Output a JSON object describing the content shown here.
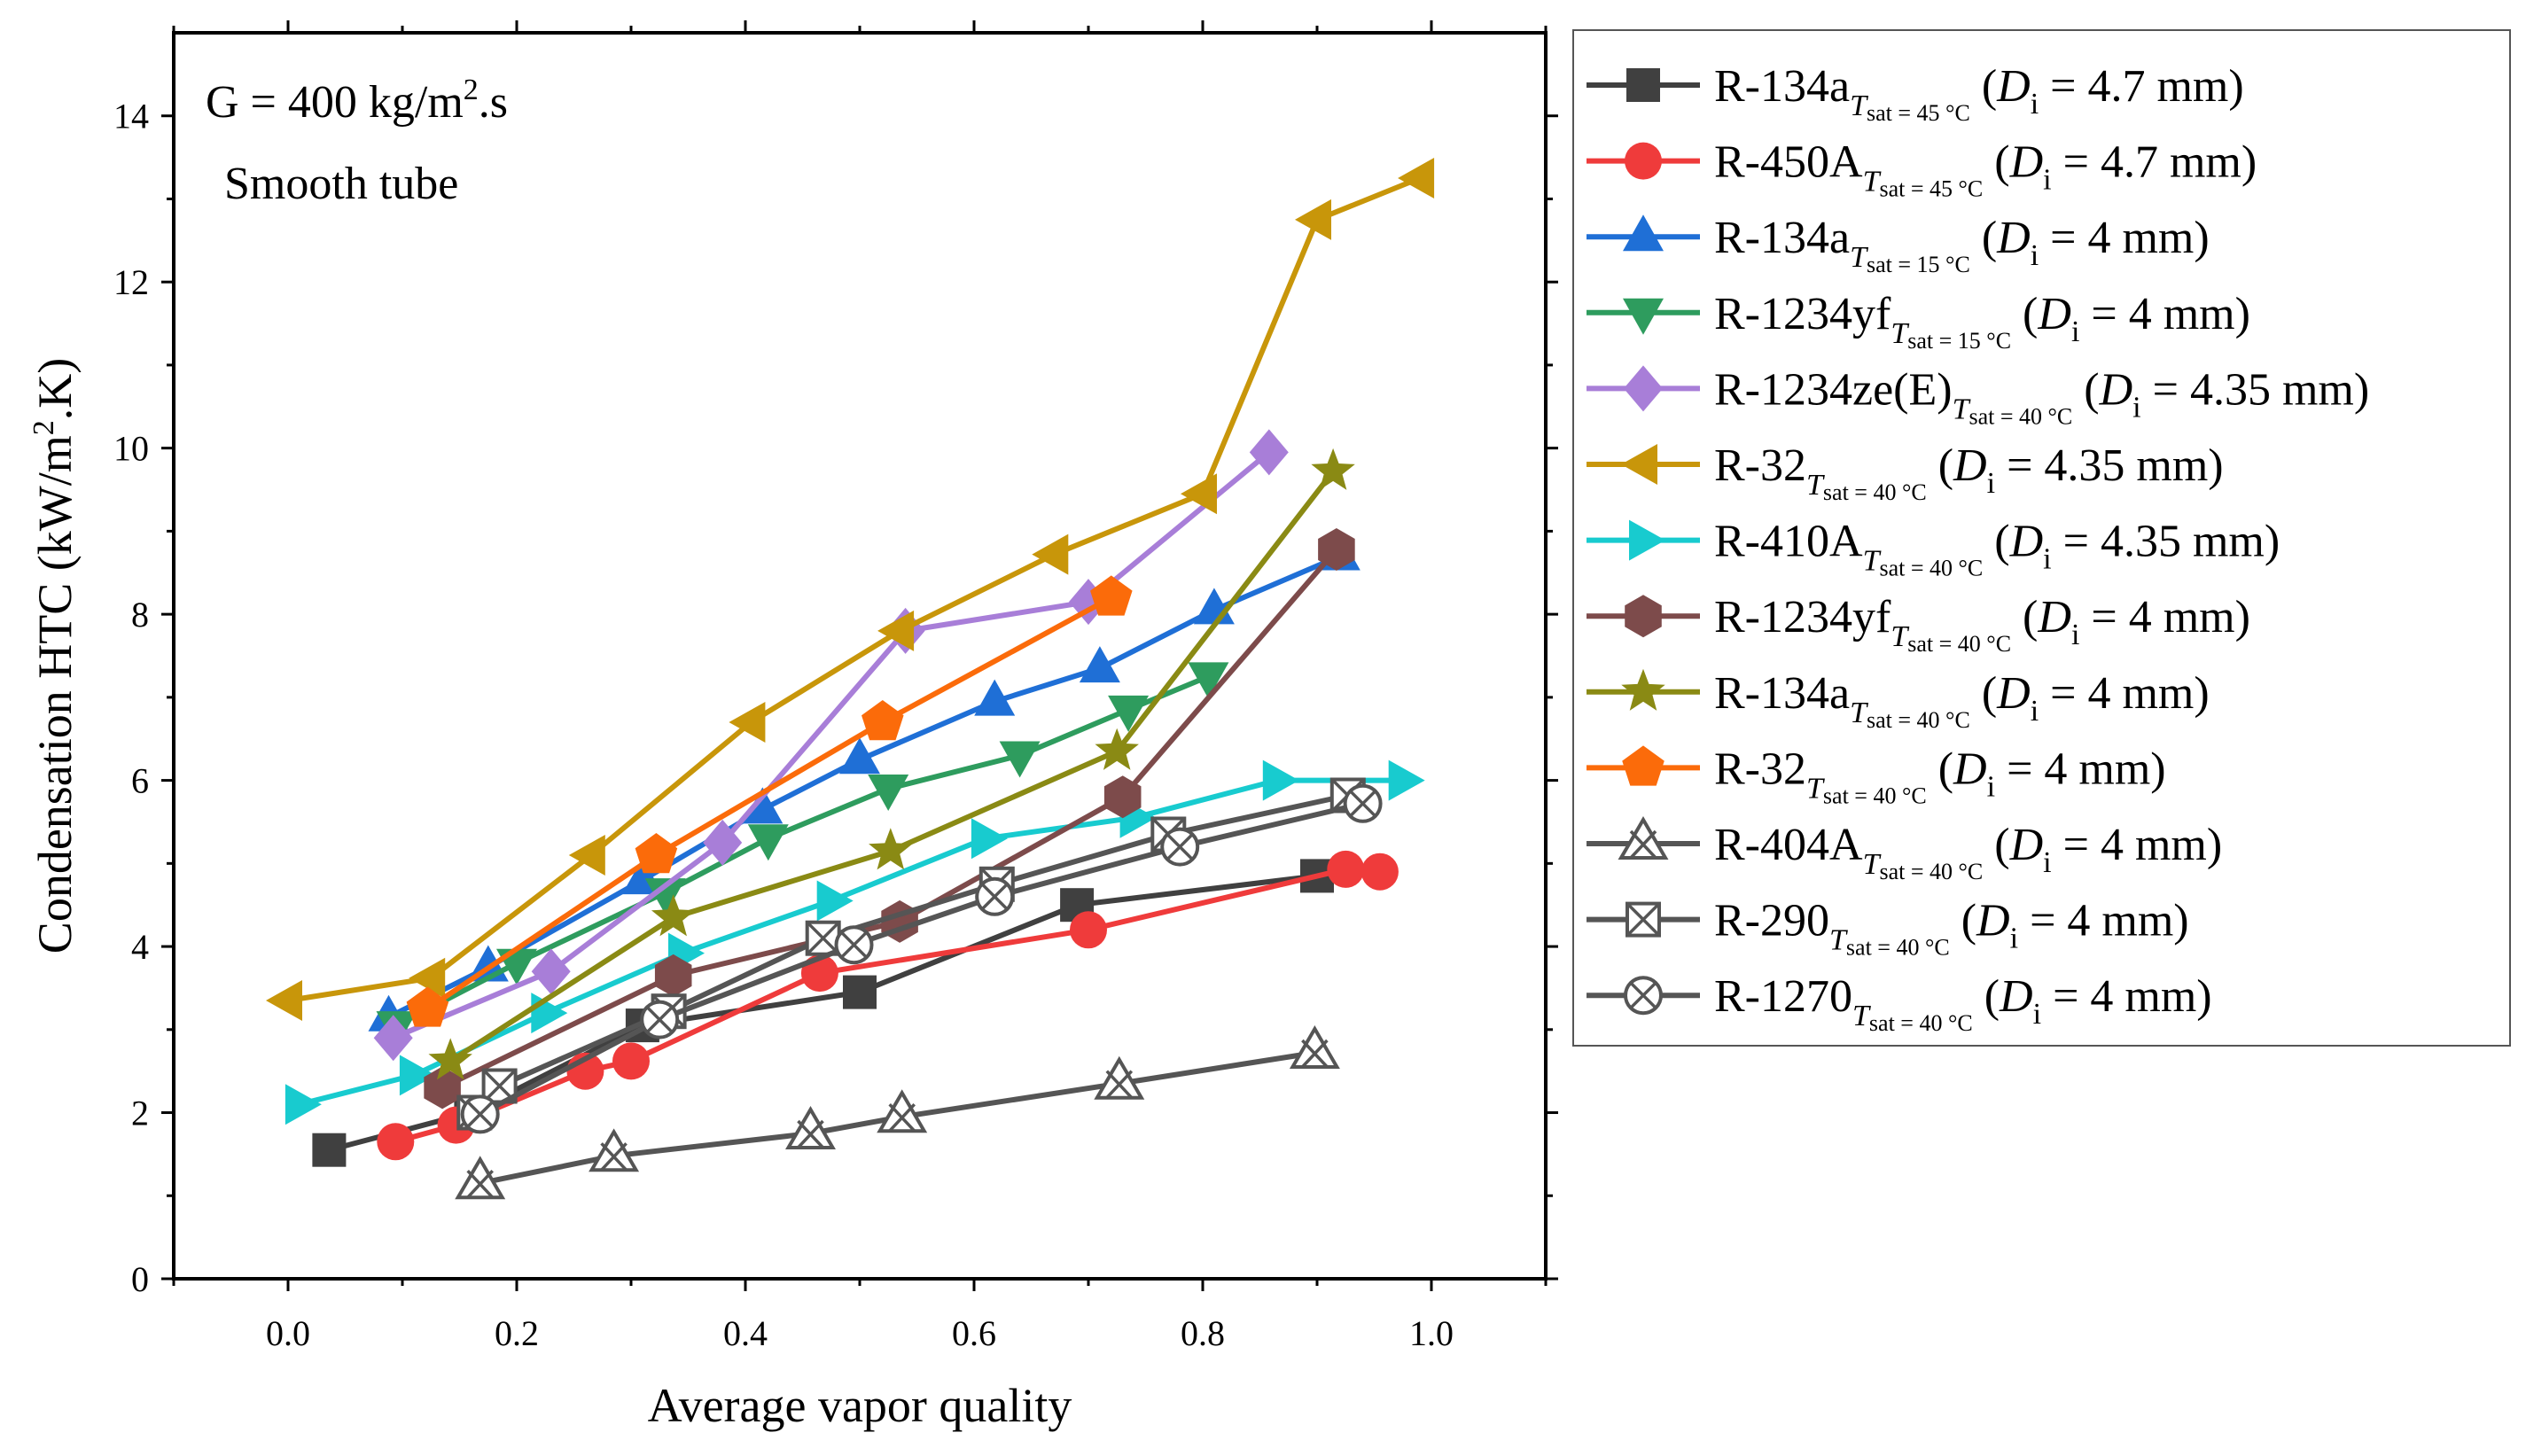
{
  "chart_data": {
    "type": "line",
    "xlabel": "Average vapor quality",
    "ylabel": "Condensation HTC (kW/m².K)",
    "xlim": [
      -0.1,
      1.1
    ],
    "ylim": [
      0,
      15
    ],
    "xticks": [
      0.0,
      0.2,
      0.4,
      0.6,
      0.8,
      1.0
    ],
    "xtick_labels": [
      "0.0",
      "0.2",
      "0.4",
      "0.6",
      "0.8",
      "1.0"
    ],
    "yticks": [
      0,
      2,
      4,
      6,
      8,
      10,
      12,
      14
    ],
    "ytick_labels": [
      "0",
      "2",
      "4",
      "6",
      "8",
      "10",
      "12",
      "14"
    ],
    "grid": false,
    "legend_position": "outside-right",
    "annotations": [
      "G = 400 kg/m².s",
      "Smooth tube"
    ],
    "series": [
      {
        "fluid": "R-134a",
        "cond": "T",
        "cond_sub": "sat = 45 °C",
        "di_val": " = 4.7 mm)",
        "color": "#404040",
        "marker": "square",
        "x": [
          0.036,
          0.16,
          0.31,
          0.5,
          0.69,
          0.9
        ],
        "y": [
          1.55,
          2.0,
          3.05,
          3.45,
          4.5,
          4.85
        ]
      },
      {
        "fluid": "R-450A",
        "cond": "T",
        "cond_sub": "sat = 45 °C",
        "di_val": " = 4.7 mm)",
        "color": "#ef3b3b",
        "marker": "circle",
        "x": [
          0.094,
          0.147,
          0.26,
          0.3,
          0.465,
          0.7,
          0.925,
          0.955
        ],
        "y": [
          1.65,
          1.85,
          2.5,
          2.62,
          3.68,
          4.2,
          4.93,
          4.9
        ]
      },
      {
        "fluid": "R-134a",
        "cond": "T",
        "cond_sub": "sat = 15 °C",
        "di_val": " = 4 mm)",
        "color": "#1f6fd6",
        "marker": "triangle-up",
        "x": [
          0.088,
          0.175,
          0.31,
          0.415,
          0.5,
          0.618,
          0.71,
          0.81,
          0.92
        ],
        "y": [
          3.15,
          3.75,
          4.8,
          5.65,
          6.25,
          6.95,
          7.35,
          8.05,
          8.7
        ]
      },
      {
        "fluid": "R-1234yf",
        "cond": "T",
        "cond_sub": "sat = 15 °C",
        "di_val": " = 4 mm)",
        "color": "#2e9c5e",
        "marker": "triangle-down",
        "x": [
          0.095,
          0.2,
          0.33,
          0.42,
          0.525,
          0.64,
          0.735,
          0.805
        ],
        "y": [
          3.05,
          3.8,
          4.65,
          5.3,
          5.9,
          6.3,
          6.85,
          7.25
        ]
      },
      {
        "fluid": "R-1234ze(E)",
        "cond": "T",
        "cond_sub": "sat = 40 °C",
        "di_val": " = 4.35 mm)",
        "color": "#a87ed8",
        "marker": "diamond",
        "x": [
          0.092,
          0.23,
          0.38,
          0.54,
          0.7,
          0.858
        ],
        "y": [
          2.9,
          3.7,
          5.25,
          7.8,
          8.15,
          9.95
        ]
      },
      {
        "fluid": "R-32",
        "cond": "T",
        "cond_sub": "sat = 40 °C",
        "di_val": " = 4.35 mm)",
        "color": "#c8960a",
        "marker": "triangle-left",
        "x": [
          0.0,
          0.125,
          0.265,
          0.405,
          0.535,
          0.67,
          0.8,
          0.9,
          0.99
        ],
        "y": [
          3.35,
          3.62,
          5.1,
          6.7,
          7.8,
          8.72,
          9.45,
          12.75,
          13.25
        ]
      },
      {
        "fluid": "R-410A",
        "cond": "T",
        "cond_sub": "sat = 40 °C",
        "di_val": " = 4.35 mm)",
        "color": "#18cbcf",
        "marker": "triangle-right",
        "x": [
          0.01,
          0.11,
          0.225,
          0.345,
          0.475,
          0.61,
          0.74,
          0.865,
          0.975
        ],
        "y": [
          2.1,
          2.45,
          3.2,
          3.92,
          4.55,
          5.3,
          5.55,
          6.0,
          6.0
        ]
      },
      {
        "fluid": "R-1234yf",
        "cond": "T",
        "cond_sub": "sat = 40 °C",
        "di_val": " = 4 mm)",
        "color": "#7d4b4b",
        "marker": "hexagon",
        "x": [
          0.135,
          0.337,
          0.535,
          0.73,
          0.917
        ],
        "y": [
          2.3,
          3.65,
          4.3,
          5.8,
          8.78
        ]
      },
      {
        "fluid": "R-134a",
        "cond": "T",
        "cond_sub": "sat = 40 °C",
        "di_val": " = 4 mm)",
        "color": "#8a8a14",
        "marker": "star",
        "x": [
          0.142,
          0.337,
          0.527,
          0.725,
          0.914
        ],
        "y": [
          2.62,
          4.35,
          5.15,
          6.35,
          9.72
        ]
      },
      {
        "fluid": "R-32",
        "cond": "T",
        "cond_sub": "sat = 40 °C",
        "di_val": " = 4 mm)",
        "color": "#fb6b0a",
        "marker": "pentagon",
        "x": [
          0.122,
          0.322,
          0.52,
          0.72
        ],
        "y": [
          3.25,
          5.1,
          6.7,
          8.2
        ]
      },
      {
        "fluid": "R-404A",
        "cond": "T",
        "cond_sub": "sat = 40 °C",
        "di_val": " = 4 mm)",
        "color": "#555555",
        "marker": "open-triangle",
        "x": [
          0.168,
          0.285,
          0.457,
          0.537,
          0.727,
          0.898
        ],
        "y": [
          1.15,
          1.48,
          1.75,
          1.95,
          2.35,
          2.72
        ]
      },
      {
        "fluid": "R-290",
        "cond": "T",
        "cond_sub": "sat = 40 °C",
        "di_val": " = 4 mm)",
        "color": "#555555",
        "marker": "boxed-x",
        "x": [
          0.163,
          0.185,
          0.333,
          0.468,
          0.62,
          0.77,
          0.927
        ],
        "y": [
          2.0,
          2.32,
          3.22,
          4.1,
          4.75,
          5.35,
          5.82
        ]
      },
      {
        "fluid": "R-1270",
        "cond": "T",
        "cond_sub": "sat = 40 °C",
        "di_val": " = 4 mm)",
        "color": "#555555",
        "marker": "circled-x",
        "x": [
          0.168,
          0.325,
          0.495,
          0.618,
          0.78,
          0.94
        ],
        "y": [
          1.98,
          3.12,
          4.02,
          4.6,
          5.2,
          5.72
        ]
      }
    ]
  }
}
